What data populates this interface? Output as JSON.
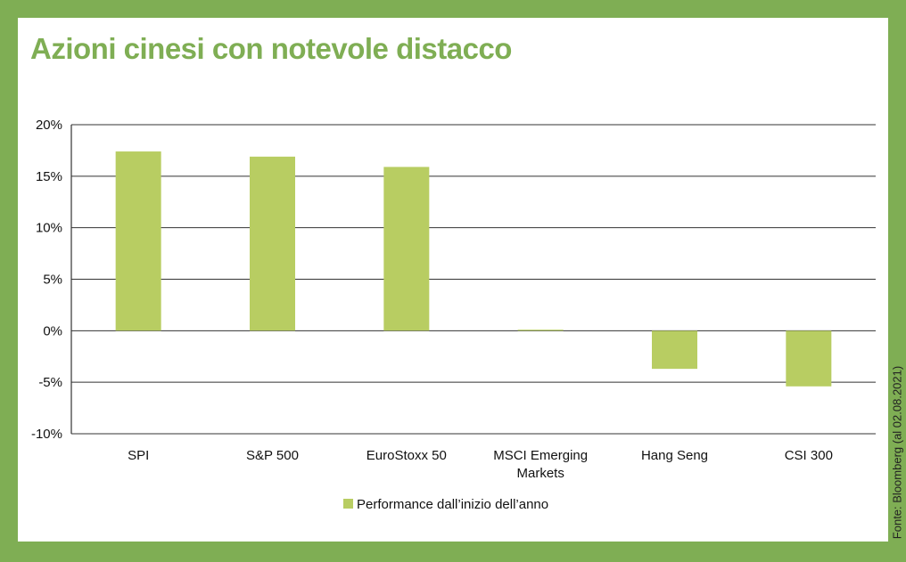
{
  "colors": {
    "frame": "#7fae54",
    "title": "#7fae54",
    "bar": "#b8cd62",
    "grid": "#333333",
    "text": "#111111"
  },
  "source": "Fonte: Bloomberg (al 02.08.2021)",
  "chart_data": {
    "type": "bar",
    "title": "Azioni cinesi con notevole distacco",
    "xlabel": "",
    "ylabel": "",
    "categories": [
      "SPI",
      "S&P 500",
      "EuroStoxx 50",
      "MSCI Emerging\nMarkets",
      "Hang Seng",
      "CSI 300"
    ],
    "series": [
      {
        "name": "Performance dall’inizio dell’anno",
        "values": [
          17.4,
          16.9,
          15.9,
          0.1,
          -3.7,
          -5.4
        ]
      }
    ],
    "ylim": [
      -10,
      20
    ],
    "yticks": [
      20,
      15,
      10,
      5,
      0,
      -5,
      -10
    ],
    "ytick_labels": [
      "20%",
      "15%",
      "10%",
      "5%",
      "0%",
      "-5%",
      "-10%"
    ],
    "grid": true,
    "legend": "bottom"
  }
}
